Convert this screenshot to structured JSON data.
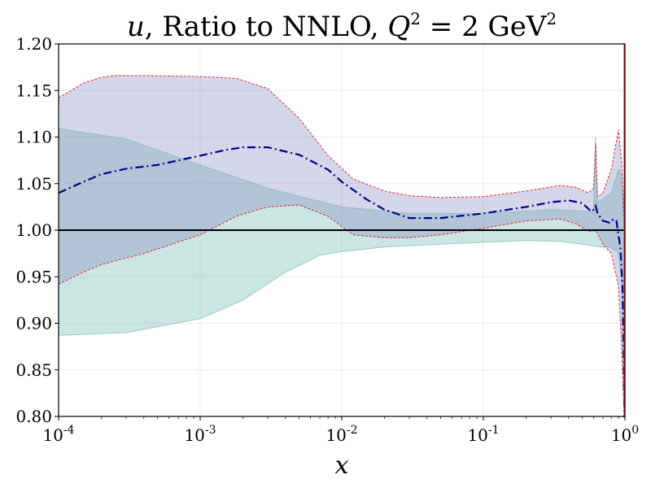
{
  "chart_data": {
    "type": "area",
    "title": "u, Ratio to NNLO, Q² = 2 GeV²",
    "title_parts": {
      "var": "u",
      "text": ", Ratio to NNLO, ",
      "q": "Q",
      "eq": " = 2 GeV",
      "sup": "2"
    },
    "xlabel": "x",
    "ylabel": "",
    "xscale": "log",
    "xlim": [
      0.0001,
      1
    ],
    "ylim": [
      0.8,
      1.2
    ],
    "grid": true,
    "x_ticks": [
      {
        "value": 0.0001,
        "base": "10",
        "exp": "-4"
      },
      {
        "value": 0.001,
        "base": "10",
        "exp": "-3"
      },
      {
        "value": 0.01,
        "base": "10",
        "exp": "-2"
      },
      {
        "value": 0.1,
        "base": "10",
        "exp": "-1"
      },
      {
        "value": 1,
        "base": "10",
        "exp": "0"
      }
    ],
    "y_ticks": [
      "0.80",
      "0.85",
      "0.90",
      "0.95",
      "1.00",
      "1.05",
      "1.10",
      "1.15",
      "1.20"
    ],
    "reference_line": 1.0,
    "colors": {
      "band_a": "#7f7fbf",
      "band_b": "#74bcb4",
      "band_a_edge": "#e0283c",
      "central": "#00008b",
      "reference": "#000000"
    },
    "series": [
      {
        "name": "band-a-upper",
        "x": [
          0.0001,
          0.00015,
          0.0002,
          0.00025,
          0.0004,
          0.001,
          0.0018,
          0.003,
          0.005,
          0.008,
          0.012,
          0.02,
          0.03,
          0.05,
          0.1,
          0.2,
          0.35,
          0.45,
          0.55,
          0.6,
          0.62,
          0.64,
          0.7,
          0.8,
          0.9,
          0.95,
          0.99,
          1.0
        ],
        "y": [
          1.142,
          1.158,
          1.164,
          1.166,
          1.166,
          1.165,
          1.163,
          1.152,
          1.12,
          1.08,
          1.055,
          1.042,
          1.037,
          1.035,
          1.036,
          1.042,
          1.048,
          1.046,
          1.04,
          1.045,
          1.093,
          1.036,
          1.04,
          1.065,
          1.108,
          1.07,
          1.0,
          0.8
        ]
      },
      {
        "name": "band-a-lower",
        "x": [
          0.0001,
          0.00015,
          0.0002,
          0.00025,
          0.0004,
          0.001,
          0.0018,
          0.003,
          0.005,
          0.008,
          0.012,
          0.02,
          0.03,
          0.05,
          0.1,
          0.2,
          0.35,
          0.45,
          0.55,
          0.6,
          0.62,
          0.64,
          0.7,
          0.8,
          0.9,
          0.95,
          0.99,
          1.0
        ],
        "y": [
          0.942,
          0.955,
          0.963,
          0.967,
          0.975,
          0.995,
          1.015,
          1.025,
          1.027,
          1.015,
          0.995,
          0.992,
          0.992,
          0.995,
          1.002,
          1.01,
          1.012,
          1.007,
          0.999,
          0.999,
          1.0,
          0.996,
          0.985,
          0.975,
          0.94,
          0.87,
          0.8,
          0.8
        ]
      },
      {
        "name": "band-b-upper",
        "x": [
          0.0001,
          0.0003,
          0.001,
          0.003,
          0.01,
          0.03,
          0.1,
          0.3,
          0.6,
          0.62,
          0.64,
          0.8,
          0.9,
          0.95,
          0.99,
          1.0
        ],
        "y": [
          1.109,
          1.098,
          1.07,
          1.045,
          1.025,
          1.018,
          1.018,
          1.022,
          1.02,
          1.1,
          1.03,
          1.04,
          1.065,
          1.06,
          1.01,
          0.8
        ]
      },
      {
        "name": "band-b-lower",
        "x": [
          0.0001,
          0.0003,
          0.001,
          0.002,
          0.004,
          0.007,
          0.01,
          0.02,
          0.05,
          0.1,
          0.2,
          0.35,
          0.5,
          0.6,
          0.7,
          0.8,
          0.9,
          0.95,
          0.99,
          1.0
        ],
        "y": [
          0.887,
          0.89,
          0.905,
          0.925,
          0.955,
          0.973,
          0.977,
          0.982,
          0.985,
          0.987,
          0.989,
          0.988,
          0.985,
          0.983,
          0.982,
          0.982,
          0.975,
          0.94,
          0.8,
          0.8
        ]
      },
      {
        "name": "central",
        "x": [
          0.0001,
          0.00015,
          0.0002,
          0.0003,
          0.0005,
          0.001,
          0.0015,
          0.002,
          0.003,
          0.005,
          0.008,
          0.01,
          0.015,
          0.02,
          0.03,
          0.05,
          0.1,
          0.2,
          0.3,
          0.4,
          0.5,
          0.58,
          0.6,
          0.62,
          0.64,
          0.7,
          0.78,
          0.83,
          0.87,
          0.9,
          0.93,
          0.96,
          0.98,
          0.99,
          1.0
        ],
        "y": [
          1.04,
          1.052,
          1.06,
          1.066,
          1.07,
          1.08,
          1.086,
          1.089,
          1.089,
          1.081,
          1.065,
          1.052,
          1.033,
          1.022,
          1.013,
          1.013,
          1.018,
          1.025,
          1.03,
          1.032,
          1.029,
          1.02,
          1.022,
          1.026,
          1.018,
          1.01,
          1.008,
          1.012,
          1.01,
          0.995,
          0.98,
          0.94,
          0.86,
          0.8,
          0.8
        ]
      }
    ]
  }
}
